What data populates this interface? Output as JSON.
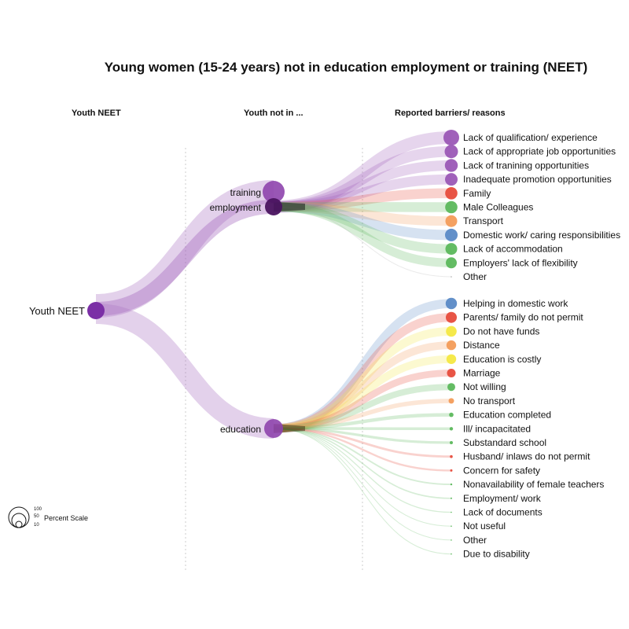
{
  "title": "Young women (15-24 years) not in education employment or training (NEET)",
  "column_headers": [
    "Youth NEET",
    "Youth not in ...",
    "Reported barriers/ reasons"
  ],
  "scale_legend": {
    "label": "Percent Scale",
    "values": [
      "100",
      "50",
      "10"
    ]
  },
  "root": {
    "label": "Youth NEET",
    "color": "#7b2fa6"
  },
  "groups": [
    {
      "key": "training",
      "label": "training",
      "color": "#8e44ad"
    },
    {
      "key": "employment",
      "label": "employment",
      "color": "#4a1460"
    },
    {
      "key": "education",
      "label": "education",
      "color": "#8e44ad"
    }
  ],
  "colors": {
    "purple": "#9b59b6",
    "red": "#e74c3c",
    "green": "#5cb85c",
    "orange": "#f39c5a",
    "blue": "#5b8ac6",
    "yellow": "#f4e842",
    "gray": "#aaaaaa"
  },
  "employment_reasons": [
    {
      "label": "Lack of qualification/ experience",
      "color": "purple",
      "size": 1.0
    },
    {
      "label": "Lack of appropriate job opportunities",
      "color": "purple",
      "size": 0.85
    },
    {
      "label": "Lack of tranining opportunities",
      "color": "purple",
      "size": 0.82
    },
    {
      "label": "Inadequate promotion opportunities",
      "color": "purple",
      "size": 0.8
    },
    {
      "label": "Family",
      "color": "red",
      "size": 0.78
    },
    {
      "label": "Male Colleagues",
      "color": "green",
      "size": 0.78
    },
    {
      "label": "Transport",
      "color": "orange",
      "size": 0.75
    },
    {
      "label": "Domestic work/ caring responsibilities",
      "color": "blue",
      "size": 0.8
    },
    {
      "label": "Lack of accommodation",
      "color": "green",
      "size": 0.75
    },
    {
      "label": "Employers' lack of flexibility",
      "color": "green",
      "size": 0.7
    },
    {
      "label": "Other",
      "color": "gray",
      "size": 0.05
    }
  ],
  "education_reasons": [
    {
      "label": "Helping in domestic work",
      "color": "blue",
      "size": 0.72
    },
    {
      "label": "Parents/ family do not permit",
      "color": "red",
      "size": 0.7
    },
    {
      "label": "Do not have funds",
      "color": "yellow",
      "size": 0.68
    },
    {
      "label": "Distance",
      "color": "orange",
      "size": 0.62
    },
    {
      "label": "Education is costly",
      "color": "yellow",
      "size": 0.62
    },
    {
      "label": "Marriage",
      "color": "red",
      "size": 0.55
    },
    {
      "label": "Not willing",
      "color": "green",
      "size": 0.5
    },
    {
      "label": "No transport",
      "color": "orange",
      "size": 0.35
    },
    {
      "label": "Education completed",
      "color": "green",
      "size": 0.28
    },
    {
      "label": "Ill/ incapacitated",
      "color": "green",
      "size": 0.22
    },
    {
      "label": "Substandard school",
      "color": "green",
      "size": 0.2
    },
    {
      "label": "Husband/ inlaws do not permit",
      "color": "red",
      "size": 0.18
    },
    {
      "label": "Concern for safety",
      "color": "red",
      "size": 0.15
    },
    {
      "label": "Nonavailability of female teachers",
      "color": "green",
      "size": 0.12
    },
    {
      "label": "Employment/ work",
      "color": "green",
      "size": 0.1
    },
    {
      "label": "Lack of documents",
      "color": "green",
      "size": 0.08
    },
    {
      "label": "Not useful",
      "color": "green",
      "size": 0.06
    },
    {
      "label": "Other",
      "color": "green",
      "size": 0.05
    },
    {
      "label": "Due to disability",
      "color": "green",
      "size": 0.04
    }
  ]
}
